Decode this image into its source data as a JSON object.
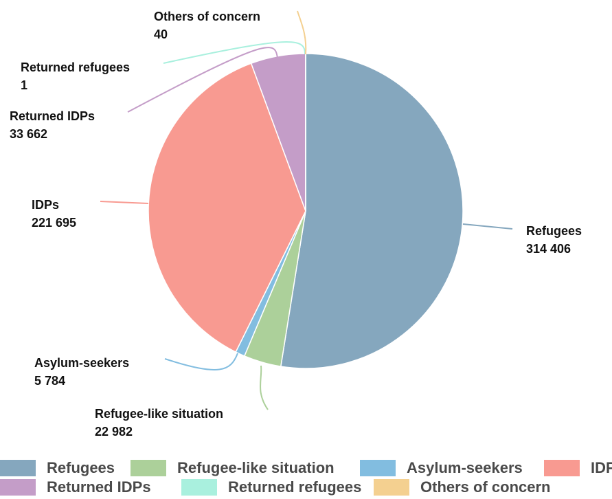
{
  "chart_data": {
    "type": "pie",
    "categories": [
      "Refugees",
      "Refugee-like situation",
      "Asylum-seekers",
      "IDPs",
      "Returned IDPs",
      "Returned refugees",
      "Others of concern"
    ],
    "values": [
      314406,
      22982,
      5784,
      221695,
      33662,
      1,
      40
    ],
    "value_labels": [
      "314 406",
      "22 982",
      "5 784",
      "221 695",
      "33 662",
      "1",
      "40"
    ],
    "colors": [
      "#85a7be",
      "#acd09a",
      "#82bde0",
      "#f89a91",
      "#c49dc8",
      "#a9f0de",
      "#f4d090"
    ],
    "legend": {
      "placement": "bottom"
    }
  }
}
